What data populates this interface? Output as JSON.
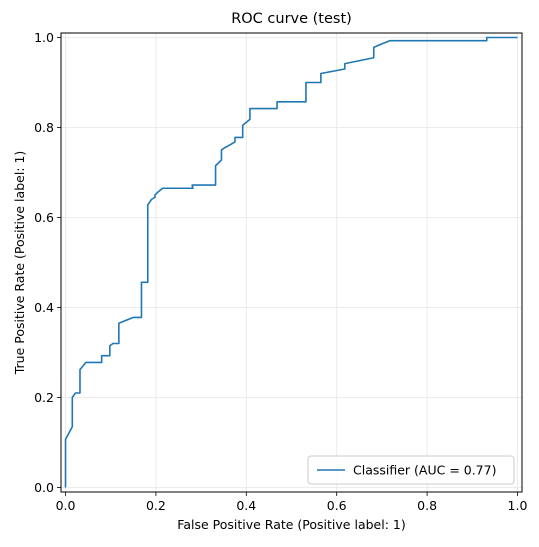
{
  "chart_data": {
    "type": "line",
    "title": "ROC curve (test)",
    "xlabel": "False Positive Rate (Positive label: 1)",
    "ylabel": "True Positive Rate (Positive label: 1)",
    "xlim": [
      -0.01,
      1.01
    ],
    "ylim": [
      -0.01,
      1.01
    ],
    "xticks": [
      0.0,
      0.2,
      0.4,
      0.6,
      0.8,
      1.0
    ],
    "yticks": [
      0.0,
      0.2,
      0.4,
      0.6,
      0.8,
      1.0
    ],
    "xtick_labels": [
      "0.0",
      "0.2",
      "0.4",
      "0.6",
      "0.8",
      "1.0"
    ],
    "ytick_labels": [
      "0.0",
      "0.2",
      "0.4",
      "0.6",
      "0.8",
      "1.0"
    ],
    "grid": true,
    "legend_position": "lower-right",
    "series": [
      {
        "name": "Classifier (AUC = 0.77)",
        "color": "#1f77b4",
        "x": [
          0.0,
          0.0,
          0.0,
          0.015,
          0.015,
          0.015,
          0.022,
          0.032,
          0.032,
          0.045,
          0.08,
          0.08,
          0.098,
          0.098,
          0.105,
          0.118,
          0.118,
          0.15,
          0.168,
          0.168,
          0.182,
          0.182,
          0.19,
          0.198,
          0.198,
          0.205,
          0.215,
          0.282,
          0.28,
          0.332,
          0.332,
          0.345,
          0.345,
          0.352,
          0.365,
          0.375,
          0.375,
          0.392,
          0.392,
          0.408,
          0.408,
          0.418,
          0.418,
          0.452,
          0.468,
          0.468,
          0.532,
          0.532,
          0.565,
          0.565,
          0.618,
          0.618,
          0.682,
          0.682,
          0.698,
          0.718,
          0.932,
          0.932,
          1.0
        ],
        "y": [
          0.0,
          0.09,
          0.107,
          0.135,
          0.2,
          0.2,
          0.21,
          0.21,
          0.262,
          0.278,
          0.278,
          0.293,
          0.293,
          0.315,
          0.32,
          0.32,
          0.365,
          0.378,
          0.378,
          0.456,
          0.456,
          0.628,
          0.64,
          0.645,
          0.65,
          0.657,
          0.665,
          0.665,
          0.672,
          0.672,
          0.715,
          0.728,
          0.75,
          0.755,
          0.762,
          0.768,
          0.778,
          0.778,
          0.805,
          0.818,
          0.842,
          0.842,
          0.842,
          0.842,
          0.842,
          0.857,
          0.857,
          0.9,
          0.9,
          0.92,
          0.93,
          0.942,
          0.955,
          0.978,
          0.985,
          0.993,
          0.993,
          1.0,
          1.0
        ]
      }
    ]
  }
}
